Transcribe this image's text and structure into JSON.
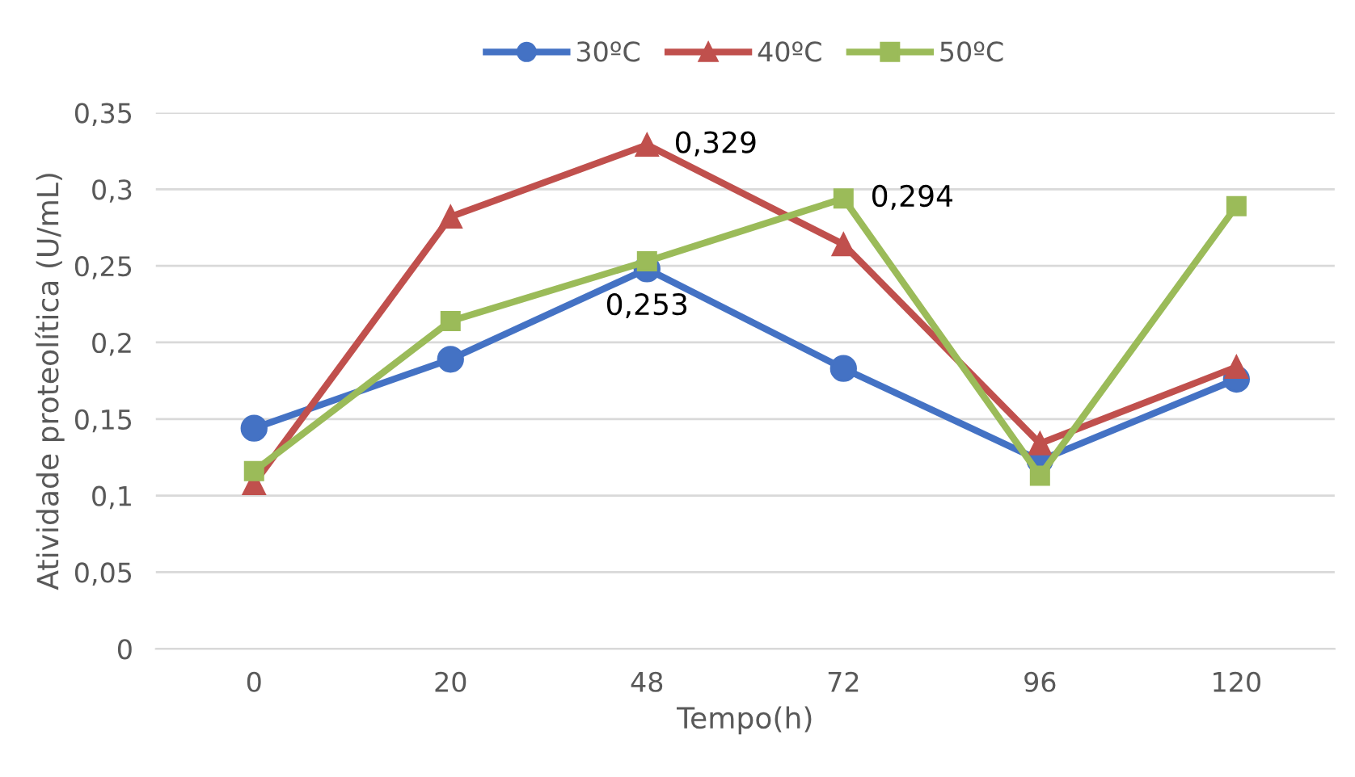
{
  "chart_data": {
    "type": "line",
    "xlabel": "Tempo(h)",
    "ylabel": "Atividade proteolítica (U/mL)",
    "categories": [
      "0",
      "20",
      "48",
      "72",
      "96",
      "120"
    ],
    "series": [
      {
        "name": "30ºC",
        "color": "#4472c4",
        "marker": "circle",
        "values": [
          0.144,
          0.189,
          0.248,
          0.183,
          0.123,
          0.176
        ]
      },
      {
        "name": "40ºC",
        "color": "#c0504d",
        "marker": "triangle",
        "values": [
          0.108,
          0.282,
          0.329,
          0.264,
          0.134,
          0.184
        ],
        "value_labels": [
          null,
          null,
          "0,329",
          null,
          null,
          null
        ]
      },
      {
        "name": "50ºC",
        "color": "#9bbb59",
        "marker": "square",
        "values": [
          0.116,
          0.214,
          0.253,
          0.294,
          0.113,
          0.289
        ],
        "value_labels": [
          null,
          null,
          "0,253",
          "0,294",
          null,
          null
        ]
      }
    ],
    "ylim": [
      0,
      0.35
    ],
    "yticks": [
      {
        "value": 0,
        "label": "0"
      },
      {
        "value": 0.05,
        "label": "0,05"
      },
      {
        "value": 0.1,
        "label": "0,1"
      },
      {
        "value": 0.15,
        "label": "0,15"
      },
      {
        "value": 0.2,
        "label": "0,2"
      },
      {
        "value": 0.25,
        "label": "0,25"
      },
      {
        "value": 0.3,
        "label": "0,3"
      },
      {
        "value": 0.35,
        "label": "0,35"
      }
    ],
    "grid": "y",
    "legend": "top",
    "line_style": "solid"
  }
}
